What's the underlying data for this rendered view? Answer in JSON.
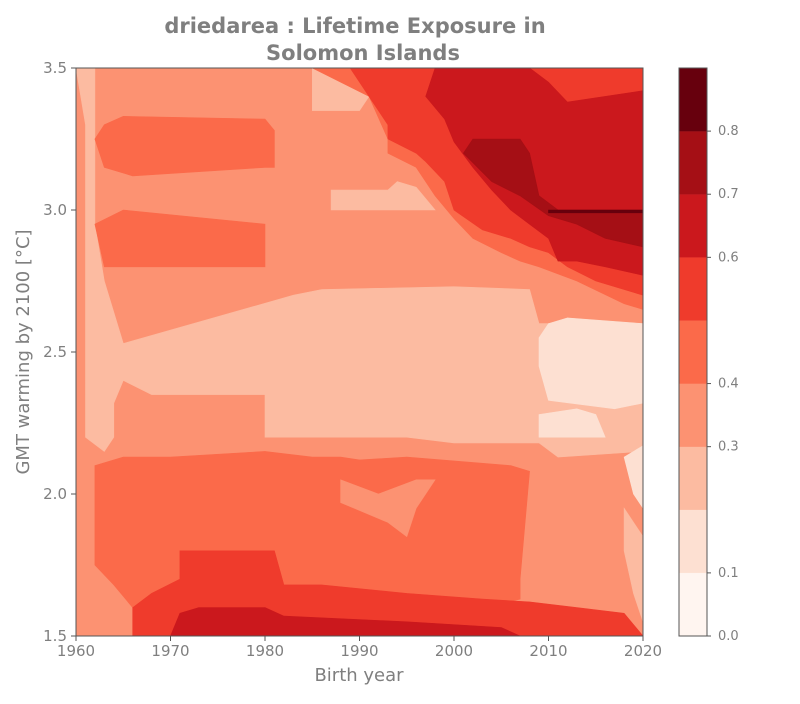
{
  "chart_data": {
    "type": "heatmap",
    "subtype": "filled-contour",
    "title_line1": "driedarea : Lifetime Exposure in",
    "title_line2": "Solomon Islands",
    "xlabel": "Birth year",
    "ylabel": "GMT warming by 2100 [°C]",
    "xlim": [
      1960,
      2020
    ],
    "ylim": [
      1.5,
      3.5
    ],
    "x_ticks": [
      "1960",
      "1970",
      "1980",
      "1990",
      "2000",
      "2010",
      "2020"
    ],
    "y_ticks": [
      "1.5",
      "2.0",
      "2.5",
      "3.0",
      "3.5"
    ],
    "colormap": "Reds",
    "colorbar": {
      "levels": [
        0.0,
        0.1,
        0.2,
        0.3,
        0.4,
        0.5,
        0.6,
        0.7,
        0.8,
        0.9
      ],
      "colors": [
        "#fff5f0",
        "#fde0d2",
        "#fcbba1",
        "#fc9272",
        "#fb6a4a",
        "#ef3b2c",
        "#cb181d",
        "#a50f15",
        "#67000d"
      ],
      "tick_labels": [
        "0.0",
        "0.1",
        "0.3",
        "0.4",
        "0.6",
        "0.7",
        "0.8"
      ],
      "tick_values": [
        0.0,
        0.1,
        0.3,
        0.4,
        0.6,
        0.7,
        0.8
      ]
    },
    "regions": [
      {
        "level": 3,
        "points": [
          [
            1960,
            1.5
          ],
          [
            2020,
            1.5
          ],
          [
            2020,
            3.5
          ],
          [
            1960,
            3.5
          ]
        ]
      },
      {
        "level": 2,
        "points": [
          [
            1960,
            3.5
          ],
          [
            1961,
            3.3
          ],
          [
            1961,
            2.2
          ],
          [
            1963,
            2.15
          ],
          [
            1964,
            2.2
          ],
          [
            1964,
            2.32
          ],
          [
            1965,
            2.4
          ],
          [
            1968,
            2.35
          ],
          [
            1980,
            2.35
          ],
          [
            1980,
            2.2
          ],
          [
            1995,
            2.2
          ],
          [
            2000,
            2.18
          ],
          [
            2009,
            2.18
          ],
          [
            2011,
            2.13
          ],
          [
            2020,
            2.15
          ],
          [
            2020,
            2.6
          ],
          [
            2016,
            2.55
          ],
          [
            2012,
            2.6
          ],
          [
            2009,
            2.6
          ],
          [
            2008,
            2.72
          ],
          [
            2000,
            2.73
          ],
          [
            1986,
            2.72
          ],
          [
            1983,
            2.7
          ],
          [
            1965,
            2.53
          ],
          [
            1963,
            2.75
          ],
          [
            1962,
            2.95
          ],
          [
            1962,
            3.5
          ]
        ]
      },
      {
        "level": 1,
        "points": [
          [
            2009,
            2.55
          ],
          [
            2010,
            2.6
          ],
          [
            2012,
            2.62
          ],
          [
            2020,
            2.6
          ],
          [
            2020,
            2.32
          ],
          [
            2017,
            2.3
          ],
          [
            2010,
            2.33
          ],
          [
            2009,
            2.45
          ]
        ]
      },
      {
        "level": 1,
        "points": [
          [
            2009,
            2.28
          ],
          [
            2013,
            2.3
          ],
          [
            2015,
            2.28
          ],
          [
            2016,
            2.2
          ],
          [
            2013,
            2.2
          ],
          [
            2009,
            2.2
          ]
        ]
      },
      {
        "level": 1,
        "points": [
          [
            2018,
            2.13
          ],
          [
            2020,
            2.17
          ],
          [
            2020,
            1.95
          ],
          [
            2019,
            2.0
          ]
        ]
      },
      {
        "level": 2,
        "points": [
          [
            2018,
            1.95
          ],
          [
            2020,
            1.85
          ],
          [
            2020,
            1.55
          ],
          [
            2019,
            1.65
          ],
          [
            2018,
            1.8
          ]
        ]
      },
      {
        "level": 2,
        "points": [
          [
            1987,
            3.07
          ],
          [
            1993,
            3.07
          ],
          [
            1994,
            3.1
          ],
          [
            1996,
            3.08
          ],
          [
            1998,
            3.0
          ],
          [
            1987,
            3.0
          ]
        ]
      },
      {
        "level": 2,
        "points": [
          [
            1988,
            2.05
          ],
          [
            1992,
            2.0
          ],
          [
            1996,
            2.05
          ],
          [
            1998,
            2.05
          ],
          [
            1996,
            1.95
          ],
          [
            1995,
            1.85
          ],
          [
            1993,
            1.9
          ],
          [
            1988,
            1.97
          ]
        ]
      },
      {
        "level": 2,
        "points": [
          [
            1985,
            3.35
          ],
          [
            1990,
            3.35
          ],
          [
            1991,
            3.4
          ],
          [
            1991,
            3.5
          ],
          [
            1985,
            3.5
          ]
        ]
      },
      {
        "level": 4,
        "points": [
          [
            1962,
            3.25
          ],
          [
            1963,
            3.3
          ],
          [
            1965,
            3.33
          ],
          [
            1980,
            3.32
          ],
          [
            1981,
            3.28
          ],
          [
            1981,
            3.15
          ],
          [
            1980,
            3.15
          ],
          [
            1966,
            3.12
          ],
          [
            1963,
            3.15
          ]
        ]
      },
      {
        "level": 4,
        "points": [
          [
            1962,
            2.95
          ],
          [
            1965,
            3.0
          ],
          [
            1980,
            2.95
          ],
          [
            1980,
            2.8
          ],
          [
            1966,
            2.8
          ],
          [
            1963,
            2.8
          ]
        ]
      },
      {
        "level": 4,
        "points": [
          [
            1962,
            1.75
          ],
          [
            1962,
            2.1
          ],
          [
            1965,
            2.13
          ],
          [
            1970,
            2.13
          ],
          [
            1980,
            2.15
          ],
          [
            1985,
            2.13
          ],
          [
            1988,
            2.13
          ],
          [
            1990,
            2.12
          ],
          [
            1995,
            2.13
          ],
          [
            2006,
            2.1
          ],
          [
            2008,
            2.08
          ],
          [
            2007,
            1.7
          ],
          [
            2007,
            1.63
          ],
          [
            1997,
            1.55
          ],
          [
            1980,
            1.53
          ],
          [
            1970,
            1.55
          ],
          [
            1966,
            1.6
          ],
          [
            1964,
            1.68
          ]
        ]
      },
      {
        "level": 3,
        "points": [
          [
            1988,
            2.05
          ],
          [
            1992,
            2.0
          ],
          [
            1996,
            2.05
          ],
          [
            1998,
            2.05
          ],
          [
            1996,
            1.95
          ],
          [
            1995,
            1.85
          ],
          [
            1993,
            1.9
          ],
          [
            1988,
            1.97
          ]
        ]
      },
      {
        "level": 5,
        "points": [
          [
            1966,
            1.5
          ],
          [
            2020,
            1.5
          ],
          [
            2018,
            1.58
          ],
          [
            2013,
            1.6
          ],
          [
            2008,
            1.62
          ],
          [
            2003,
            1.63
          ],
          [
            1995,
            1.65
          ],
          [
            1986,
            1.68
          ],
          [
            1982,
            1.68
          ],
          [
            1981,
            1.8
          ],
          [
            1971,
            1.8
          ],
          [
            1971,
            1.7
          ],
          [
            1968,
            1.65
          ],
          [
            1966,
            1.6
          ]
        ]
      },
      {
        "level": 6,
        "points": [
          [
            1970,
            1.5
          ],
          [
            2007,
            1.5
          ],
          [
            2005,
            1.53
          ],
          [
            1995,
            1.55
          ],
          [
            1982,
            1.57
          ],
          [
            1980,
            1.6
          ],
          [
            1973,
            1.6
          ],
          [
            1971,
            1.58
          ]
        ]
      },
      {
        "level": 4,
        "points": [
          [
            1985,
            3.5
          ],
          [
            1991,
            3.4
          ],
          [
            1993,
            3.25
          ],
          [
            1993,
            3.2
          ],
          [
            1996,
            3.15
          ],
          [
            1998,
            3.05
          ],
          [
            2000,
            2.97
          ],
          [
            2002,
            2.9
          ],
          [
            2005,
            2.85
          ],
          [
            2007,
            2.82
          ],
          [
            2009,
            2.8
          ],
          [
            2013,
            2.75
          ],
          [
            2018,
            2.67
          ],
          [
            2020,
            2.65
          ],
          [
            2020,
            3.5
          ]
        ]
      },
      {
        "level": 5,
        "points": [
          [
            1989,
            3.5
          ],
          [
            1991,
            3.4
          ],
          [
            1993,
            3.3
          ],
          [
            1993,
            3.25
          ],
          [
            1996,
            3.2
          ],
          [
            1997,
            3.17
          ],
          [
            1999,
            3.1
          ],
          [
            2000,
            3.0
          ],
          [
            2003,
            2.93
          ],
          [
            2006,
            2.9
          ],
          [
            2008,
            2.87
          ],
          [
            2010,
            2.85
          ],
          [
            2012,
            2.8
          ],
          [
            2015,
            2.75
          ],
          [
            2020,
            2.7
          ],
          [
            2020,
            3.5
          ]
        ]
      },
      {
        "level": 6,
        "points": [
          [
            1997,
            3.4
          ],
          [
            1999,
            3.32
          ],
          [
            2000,
            3.24
          ],
          [
            2002,
            3.15
          ],
          [
            2004,
            3.07
          ],
          [
            2006,
            3.0
          ],
          [
            2008,
            2.95
          ],
          [
            2010,
            2.9
          ],
          [
            2011,
            2.82
          ],
          [
            2013,
            2.82
          ],
          [
            2016,
            2.8
          ],
          [
            2020,
            2.77
          ],
          [
            2020,
            3.42
          ],
          [
            2016,
            3.4
          ],
          [
            2012,
            3.38
          ],
          [
            2010,
            3.45
          ],
          [
            2008,
            3.5
          ],
          [
            1998,
            3.5
          ]
        ]
      },
      {
        "level": 7,
        "points": [
          [
            2001,
            3.2
          ],
          [
            2002,
            3.25
          ],
          [
            2007,
            3.25
          ],
          [
            2008,
            3.2
          ],
          [
            2009,
            3.05
          ],
          [
            2011,
            3.0
          ],
          [
            2014,
            3.0
          ],
          [
            2020,
            3.0
          ],
          [
            2020,
            2.87
          ],
          [
            2016,
            2.9
          ],
          [
            2013,
            2.95
          ],
          [
            2010,
            2.98
          ],
          [
            2007,
            3.05
          ],
          [
            2004,
            3.1
          ]
        ]
      },
      {
        "level": 8,
        "points": [
          [
            2010,
            3.0
          ],
          [
            2020,
            3.0
          ],
          [
            2020,
            2.99
          ],
          [
            2010,
            2.99
          ]
        ]
      }
    ]
  }
}
